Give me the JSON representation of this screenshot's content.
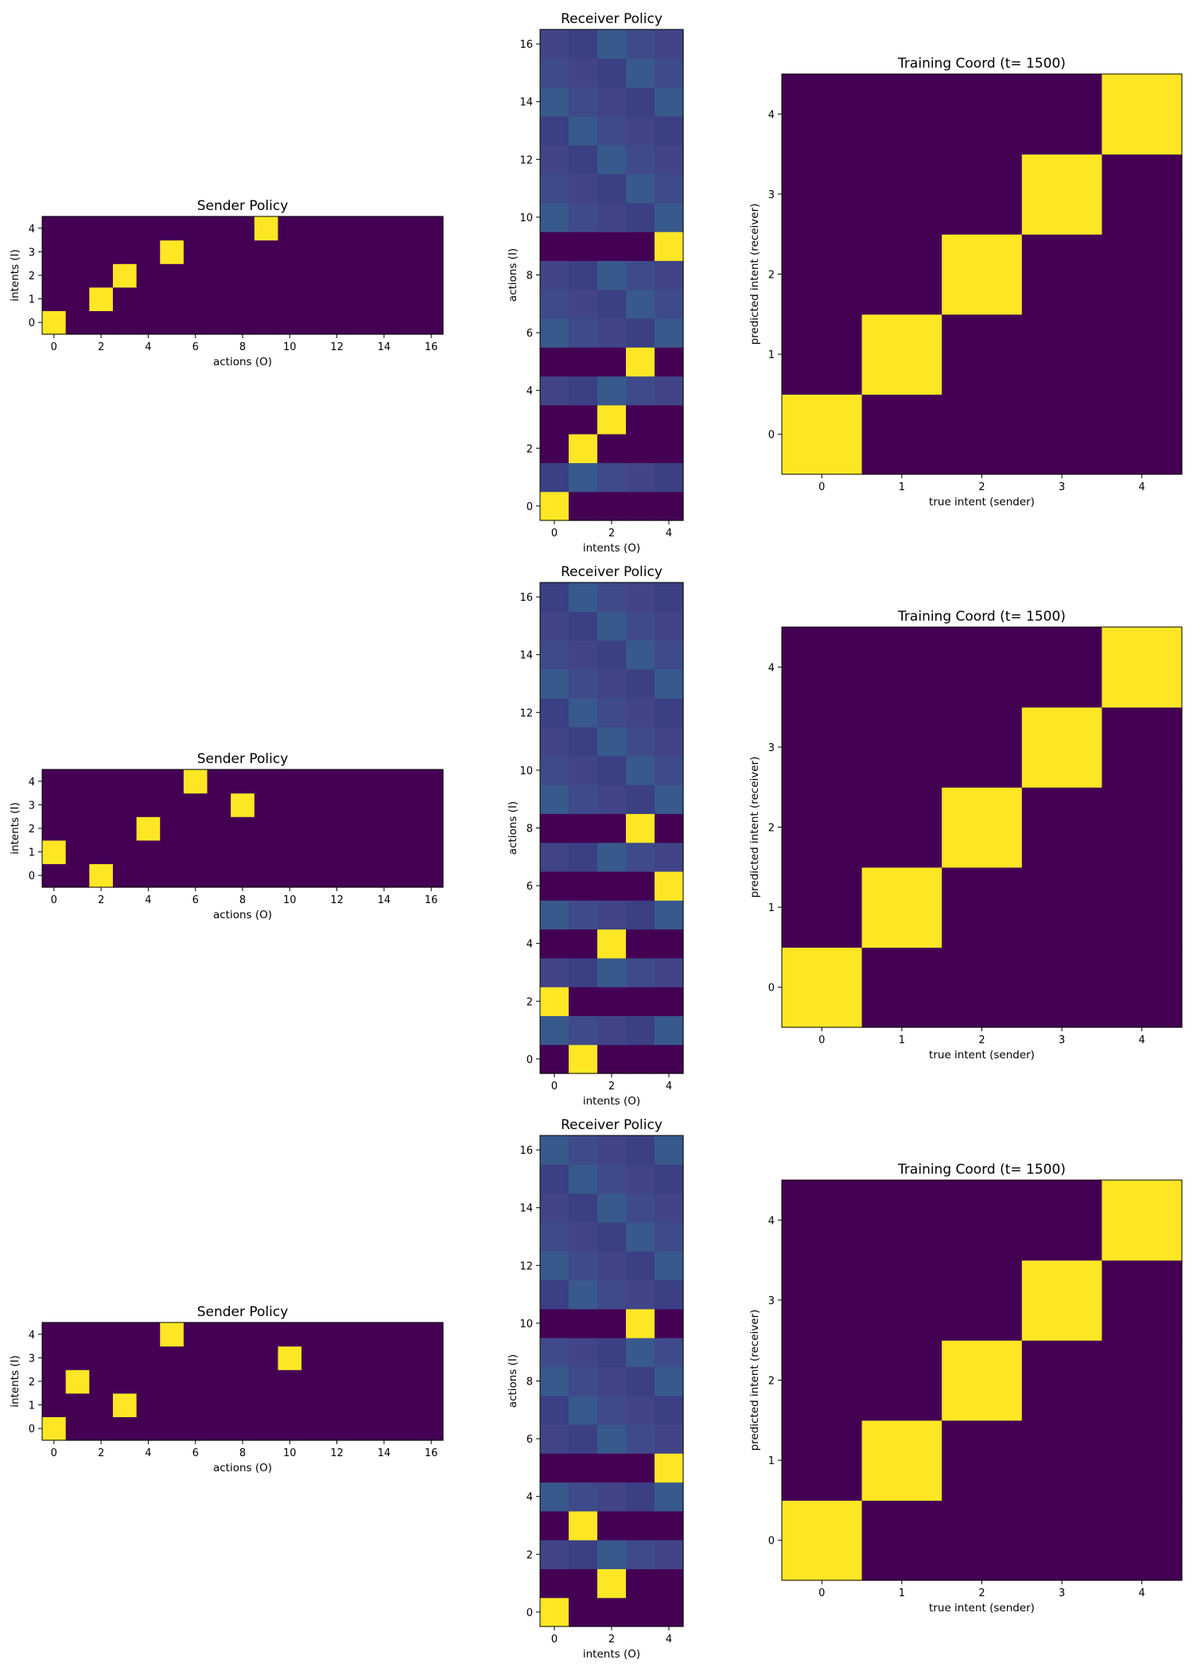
{
  "figure": {
    "rows": 3
  },
  "colors": {
    "low": "#440154",
    "high": "#fde725",
    "mid_a": "#3b3f84",
    "mid_b": "#414487",
    "mid_c": "#3f4a8a",
    "mid_d": "#38598c"
  },
  "chart_data": [
    {
      "type": "heatmap",
      "panel": "sender",
      "row": 0,
      "title": "Sender Policy",
      "xlabel": "actions (O)",
      "ylabel": "intents (I)",
      "xticks": [
        0,
        2,
        4,
        6,
        8,
        10,
        12,
        14,
        16
      ],
      "yticks": [
        0,
        1,
        2,
        3,
        4
      ],
      "n_cols": 17,
      "n_rows": 5,
      "peaks": [
        [
          0,
          0
        ],
        [
          1,
          2
        ],
        [
          2,
          3
        ],
        [
          3,
          5
        ],
        [
          4,
          9
        ]
      ]
    },
    {
      "type": "heatmap",
      "panel": "receiver",
      "row": 0,
      "title": "Receiver Policy",
      "xlabel": "intents (O)",
      "ylabel": "actions (I)",
      "xticks": [
        0,
        2,
        4
      ],
      "yticks": [
        0,
        2,
        4,
        6,
        8,
        10,
        12,
        14,
        16
      ],
      "n_cols": 5,
      "n_rows": 17,
      "peaks": [
        [
          0,
          0
        ],
        [
          2,
          1
        ],
        [
          3,
          2
        ],
        [
          5,
          3
        ],
        [
          9,
          4
        ]
      ]
    },
    {
      "type": "heatmap",
      "panel": "coord",
      "row": 0,
      "title": "Training Coord (t= 1500)",
      "xlabel": "true intent (sender)",
      "ylabel": "predicted intent (receiver)",
      "xticks": [
        0,
        1,
        2,
        3,
        4
      ],
      "yticks": [
        0,
        1,
        2,
        3,
        4
      ],
      "n_cols": 5,
      "n_rows": 5,
      "peaks": [
        [
          0,
          0
        ],
        [
          1,
          1
        ],
        [
          2,
          2
        ],
        [
          3,
          3
        ],
        [
          4,
          4
        ]
      ]
    },
    {
      "type": "heatmap",
      "panel": "sender",
      "row": 1,
      "title": "Sender Policy",
      "xlabel": "actions (O)",
      "ylabel": "intents (I)",
      "xticks": [
        0,
        2,
        4,
        6,
        8,
        10,
        12,
        14,
        16
      ],
      "yticks": [
        0,
        1,
        2,
        3,
        4
      ],
      "n_cols": 17,
      "n_rows": 5,
      "peaks": [
        [
          0,
          2
        ],
        [
          1,
          0
        ],
        [
          2,
          4
        ],
        [
          3,
          8
        ],
        [
          4,
          6
        ]
      ]
    },
    {
      "type": "heatmap",
      "panel": "receiver",
      "row": 1,
      "title": "Receiver Policy",
      "xlabel": "intents (O)",
      "ylabel": "actions (I)",
      "xticks": [
        0,
        2,
        4
      ],
      "yticks": [
        0,
        2,
        4,
        6,
        8,
        10,
        12,
        14,
        16
      ],
      "n_cols": 5,
      "n_rows": 17,
      "peaks": [
        [
          0,
          1
        ],
        [
          2,
          0
        ],
        [
          4,
          2
        ],
        [
          6,
          4
        ],
        [
          8,
          3
        ]
      ]
    },
    {
      "type": "heatmap",
      "panel": "coord",
      "row": 1,
      "title": "Training Coord (t= 1500)",
      "xlabel": "true intent (sender)",
      "ylabel": "predicted intent (receiver)",
      "xticks": [
        0,
        1,
        2,
        3,
        4
      ],
      "yticks": [
        0,
        1,
        2,
        3,
        4
      ],
      "n_cols": 5,
      "n_rows": 5,
      "peaks": [
        [
          0,
          0
        ],
        [
          1,
          1
        ],
        [
          2,
          2
        ],
        [
          3,
          3
        ],
        [
          4,
          4
        ]
      ]
    },
    {
      "type": "heatmap",
      "panel": "sender",
      "row": 2,
      "title": "Sender Policy",
      "xlabel": "actions (O)",
      "ylabel": "intents (I)",
      "xticks": [
        0,
        2,
        4,
        6,
        8,
        10,
        12,
        14,
        16
      ],
      "yticks": [
        0,
        1,
        2,
        3,
        4
      ],
      "n_cols": 17,
      "n_rows": 5,
      "peaks": [
        [
          0,
          0
        ],
        [
          1,
          3
        ],
        [
          2,
          1
        ],
        [
          3,
          10
        ],
        [
          4,
          5
        ]
      ]
    },
    {
      "type": "heatmap",
      "panel": "receiver",
      "row": 2,
      "title": "Receiver Policy",
      "xlabel": "intents (O)",
      "ylabel": "actions (I)",
      "xticks": [
        0,
        2,
        4
      ],
      "yticks": [
        0,
        2,
        4,
        6,
        8,
        10,
        12,
        14,
        16
      ],
      "n_cols": 5,
      "n_rows": 17,
      "peaks": [
        [
          0,
          0
        ],
        [
          1,
          2
        ],
        [
          3,
          1
        ],
        [
          5,
          4
        ],
        [
          10,
          3
        ]
      ]
    },
    {
      "type": "heatmap",
      "panel": "coord",
      "row": 2,
      "title": "Training Coord (t= 1500)",
      "xlabel": "true intent (sender)",
      "ylabel": "predicted intent (receiver)",
      "xticks": [
        0,
        1,
        2,
        3,
        4
      ],
      "yticks": [
        0,
        1,
        2,
        3,
        4
      ],
      "n_cols": 5,
      "n_rows": 5,
      "peaks": [
        [
          0,
          0
        ],
        [
          1,
          1
        ],
        [
          2,
          2
        ],
        [
          3,
          3
        ],
        [
          4,
          4
        ]
      ]
    }
  ]
}
